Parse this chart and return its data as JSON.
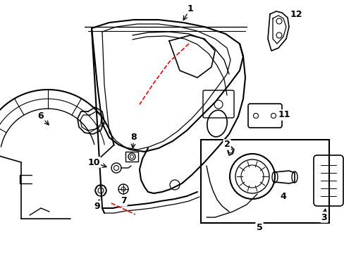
{
  "background_color": "#ffffff",
  "line_color": "#000000",
  "dashed_line_color": "#ff0000",
  "figsize": [
    4.89,
    3.6
  ],
  "dpi": 100
}
